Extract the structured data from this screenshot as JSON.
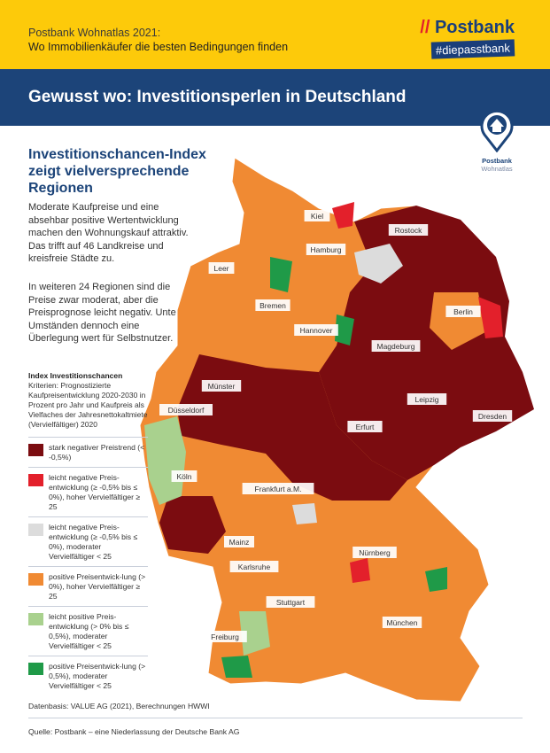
{
  "header": {
    "line1": "Postbank Wohnatlas 2021:",
    "line2": "Wo Immobilienkäufer die besten Bedingungen finden",
    "logo_text": "Postbank",
    "hashtag": "#diepasstbank"
  },
  "banner": {
    "title": "Gewusst wo: Investitionsperlen in Deutschland"
  },
  "badge": {
    "line1": "Postbank",
    "line2": "Wohnatlas"
  },
  "article": {
    "title": "Investitionschancen-Index zeigt vielversprechende Regionen",
    "para1": "Moderate Kaufpreise und eine absehbar positive Wertentwicklung machen den Wohnungskauf attraktiv. Das trifft auf 46 Landkreise und kreisfreie Städte zu.",
    "para2": "In weiteren 24 Regionen sind die Preise zwar moderat, aber die Preisprognose leicht negativ. Unter Umständen dennoch eine Überlegung wert für Selbstnutzer."
  },
  "legend": {
    "title": "Index Investitionschancen",
    "criteria": "Kriterien: Prognostizierte Kaufpreisentwicklung 2020-2030 in Prozent pro Jahr und Kaufpreis als Vielfaches der Jahresnettokaltmiete (Vervielfältiger) 2020",
    "items": [
      {
        "label": "stark negativer Preistrend (< -0,5%)",
        "color": "#7b0c10"
      },
      {
        "label": "leicht negative Preis-entwicklung (≥ -0,5% bis ≤ 0%), hoher Vervielfältiger ≥ 25",
        "color": "#e3202b"
      },
      {
        "label": "leicht negative Preis-entwicklung (≥ -0,5% bis ≤ 0%), moderater Vervielfältiger < 25",
        "color": "#dcdcdc"
      },
      {
        "label": "positive Preisentwick-lung (> 0%), hoher Vervielfältiger ≥ 25",
        "color": "#f08a33"
      },
      {
        "label": "leicht positive Preis-entwicklung (> 0% bis ≤ 0,5%), moderater Vervielfältiger < 25",
        "color": "#a9d18e"
      },
      {
        "label": "positive Preisentwick-lung (> 0,5%), moderater Vervielfältiger < 25",
        "color": "#1f9a48"
      }
    ]
  },
  "map": {
    "cities": [
      "Kiel",
      "Rostock",
      "Hamburg",
      "Leer",
      "Bremen",
      "Berlin",
      "Hannover",
      "Magdeburg",
      "Münster",
      "Düsseldorf",
      "Leipzig",
      "Erfurt",
      "Dresden",
      "Köln",
      "Frankfurt a.M.",
      "Mainz",
      "Nürnberg",
      "Karlsruhe",
      "Stuttgart",
      "München",
      "Freiburg"
    ]
  },
  "source": "Datenbasis: VALUE AG (2021), Berechnungen HWWI",
  "footer": "Quelle: Postbank – eine Niederlassung der Deutsche Bank AG"
}
